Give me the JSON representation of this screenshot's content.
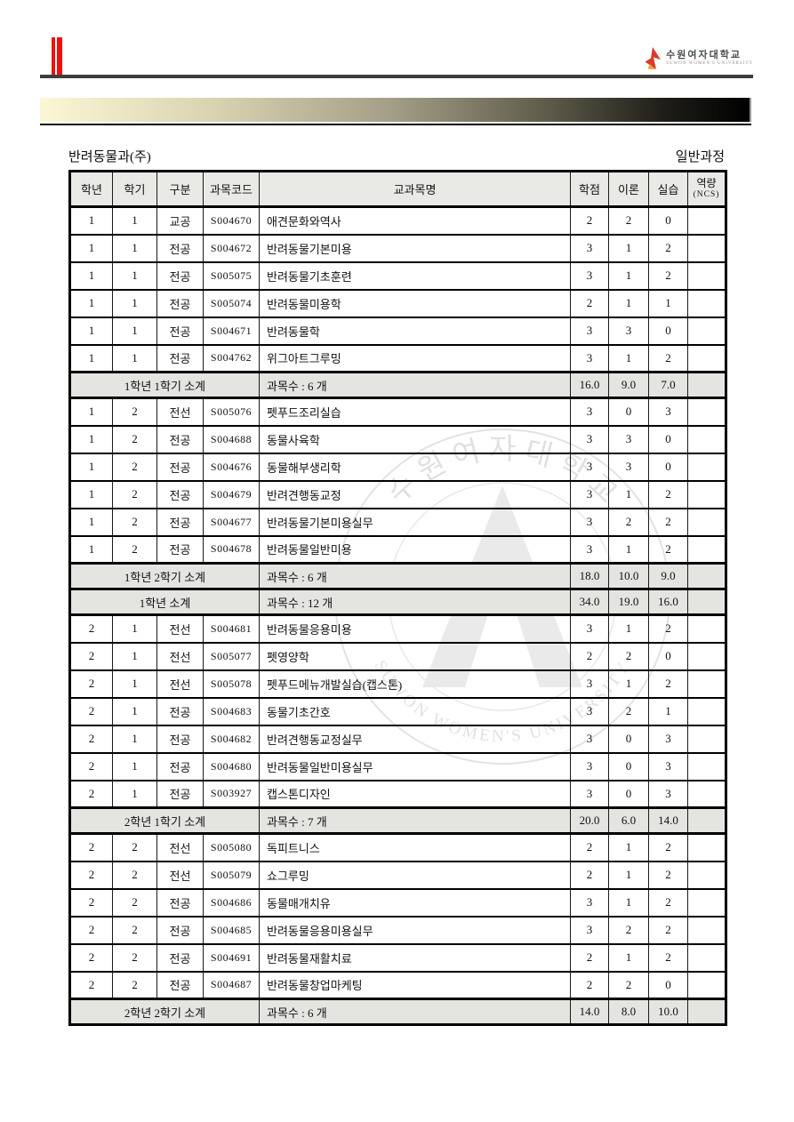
{
  "page": {
    "title_left": "반려동물과(주)",
    "title_right": "일반과정"
  },
  "logo": {
    "university_name": "수원여자대학교",
    "university_subtext": "SUWON WOMEN'S UNIVERSITY"
  },
  "watermark": {
    "top_text": "수 원 여 자 대 학 교",
    "bottom_text": "SUWON WOMEN'S UNIVERSITY"
  },
  "table": {
    "headers": {
      "year": "학년",
      "semester": "학기",
      "category": "구분",
      "code": "과목코드",
      "course": "교과목명",
      "credits": "학점",
      "theory": "이론",
      "practice": "실습",
      "ncs_line1": "역량",
      "ncs_line2": "(NCS)"
    },
    "rows": [
      {
        "type": "course",
        "year": "1",
        "semester": "1",
        "category": "교공",
        "code": "S004670",
        "name": "애견문화와역사",
        "credits": "2",
        "theory": "2",
        "practice": "0",
        "ncs": ""
      },
      {
        "type": "course",
        "year": "1",
        "semester": "1",
        "category": "전공",
        "code": "S004672",
        "name": "반려동물기본미용",
        "credits": "3",
        "theory": "1",
        "practice": "2",
        "ncs": ""
      },
      {
        "type": "course",
        "year": "1",
        "semester": "1",
        "category": "전공",
        "code": "S005075",
        "name": "반려동물기초훈련",
        "credits": "3",
        "theory": "1",
        "practice": "2",
        "ncs": ""
      },
      {
        "type": "course",
        "year": "1",
        "semester": "1",
        "category": "전공",
        "code": "S005074",
        "name": "반려동물미용학",
        "credits": "2",
        "theory": "1",
        "practice": "1",
        "ncs": ""
      },
      {
        "type": "course",
        "year": "1",
        "semester": "1",
        "category": "전공",
        "code": "S004671",
        "name": "반려동물학",
        "credits": "3",
        "theory": "3",
        "practice": "0",
        "ncs": ""
      },
      {
        "type": "course",
        "year": "1",
        "semester": "1",
        "category": "전공",
        "code": "S004762",
        "name": "위그아트그루밍",
        "credits": "3",
        "theory": "1",
        "practice": "2",
        "ncs": ""
      },
      {
        "type": "subtotal",
        "label": "1학년 1학기 소계",
        "count": "과목수 : 6 개",
        "credits": "16.0",
        "theory": "9.0",
        "practice": "7.0",
        "ncs": ""
      },
      {
        "type": "course",
        "year": "1",
        "semester": "2",
        "category": "전선",
        "code": "S005076",
        "name": "펫푸드조리실습",
        "credits": "3",
        "theory": "0",
        "practice": "3",
        "ncs": ""
      },
      {
        "type": "course",
        "year": "1",
        "semester": "2",
        "category": "전공",
        "code": "S004688",
        "name": "동물사육학",
        "credits": "3",
        "theory": "3",
        "practice": "0",
        "ncs": ""
      },
      {
        "type": "course",
        "year": "1",
        "semester": "2",
        "category": "전공",
        "code": "S004676",
        "name": "동물해부생리학",
        "credits": "3",
        "theory": "3",
        "practice": "0",
        "ncs": ""
      },
      {
        "type": "course",
        "year": "1",
        "semester": "2",
        "category": "전공",
        "code": "S004679",
        "name": "반려견행동교정",
        "credits": "3",
        "theory": "1",
        "practice": "2",
        "ncs": ""
      },
      {
        "type": "course",
        "year": "1",
        "semester": "2",
        "category": "전공",
        "code": "S004677",
        "name": "반려동물기본미용실무",
        "credits": "3",
        "theory": "2",
        "practice": "2",
        "ncs": ""
      },
      {
        "type": "course",
        "year": "1",
        "semester": "2",
        "category": "전공",
        "code": "S004678",
        "name": "반려동물일반미용",
        "credits": "3",
        "theory": "1",
        "practice": "2",
        "ncs": ""
      },
      {
        "type": "subtotal",
        "label": "1학년 2학기 소계",
        "count": "과목수 : 6 개",
        "credits": "18.0",
        "theory": "10.0",
        "practice": "9.0",
        "ncs": ""
      },
      {
        "type": "subtotal",
        "label": "1학년 소계",
        "count": "과목수 : 12 개",
        "credits": "34.0",
        "theory": "19.0",
        "practice": "16.0",
        "ncs": ""
      },
      {
        "type": "course",
        "year": "2",
        "semester": "1",
        "category": "전선",
        "code": "S004681",
        "name": "반려동물응용미용",
        "credits": "3",
        "theory": "1",
        "practice": "2",
        "ncs": ""
      },
      {
        "type": "course",
        "year": "2",
        "semester": "1",
        "category": "전선",
        "code": "S005077",
        "name": "펫영양학",
        "credits": "2",
        "theory": "2",
        "practice": "0",
        "ncs": ""
      },
      {
        "type": "course",
        "year": "2",
        "semester": "1",
        "category": "전선",
        "code": "S005078",
        "name": "펫푸드메뉴개발실습(캡스톤)",
        "credits": "3",
        "theory": "1",
        "practice": "2",
        "ncs": ""
      },
      {
        "type": "course",
        "year": "2",
        "semester": "1",
        "category": "전공",
        "code": "S004683",
        "name": "동물기초간호",
        "credits": "3",
        "theory": "2",
        "practice": "1",
        "ncs": ""
      },
      {
        "type": "course",
        "year": "2",
        "semester": "1",
        "category": "전공",
        "code": "S004682",
        "name": "반려견행동교정실무",
        "credits": "3",
        "theory": "0",
        "practice": "3",
        "ncs": ""
      },
      {
        "type": "course",
        "year": "2",
        "semester": "1",
        "category": "전공",
        "code": "S004680",
        "name": "반려동물일반미용실무",
        "credits": "3",
        "theory": "0",
        "practice": "3",
        "ncs": ""
      },
      {
        "type": "course",
        "year": "2",
        "semester": "1",
        "category": "전공",
        "code": "S003927",
        "name": "캡스톤디자인",
        "credits": "3",
        "theory": "0",
        "practice": "3",
        "ncs": ""
      },
      {
        "type": "subtotal",
        "label": "2학년 1학기 소계",
        "count": "과목수 : 7 개",
        "credits": "20.0",
        "theory": "6.0",
        "practice": "14.0",
        "ncs": ""
      },
      {
        "type": "course",
        "year": "2",
        "semester": "2",
        "category": "전선",
        "code": "S005080",
        "name": "독피트니스",
        "credits": "2",
        "theory": "1",
        "practice": "2",
        "ncs": ""
      },
      {
        "type": "course",
        "year": "2",
        "semester": "2",
        "category": "전선",
        "code": "S005079",
        "name": "쇼그루밍",
        "credits": "2",
        "theory": "1",
        "practice": "2",
        "ncs": ""
      },
      {
        "type": "course",
        "year": "2",
        "semester": "2",
        "category": "전공",
        "code": "S004686",
        "name": "동물매개치유",
        "credits": "3",
        "theory": "1",
        "practice": "2",
        "ncs": ""
      },
      {
        "type": "course",
        "year": "2",
        "semester": "2",
        "category": "전공",
        "code": "S004685",
        "name": "반려동물응용미용실무",
        "credits": "3",
        "theory": "2",
        "practice": "2",
        "ncs": ""
      },
      {
        "type": "course",
        "year": "2",
        "semester": "2",
        "category": "전공",
        "code": "S004691",
        "name": "반려동물재활치료",
        "credits": "2",
        "theory": "1",
        "practice": "2",
        "ncs": ""
      },
      {
        "type": "course",
        "year": "2",
        "semester": "2",
        "category": "전공",
        "code": "S004687",
        "name": "반려동물창업마케팅",
        "credits": "2",
        "theory": "2",
        "practice": "0",
        "ncs": ""
      },
      {
        "type": "subtotal",
        "label": "2학년 2학기 소계",
        "count": "과목수 : 6 개",
        "credits": "14.0",
        "theory": "8.0",
        "practice": "10.0",
        "ncs": ""
      }
    ]
  }
}
